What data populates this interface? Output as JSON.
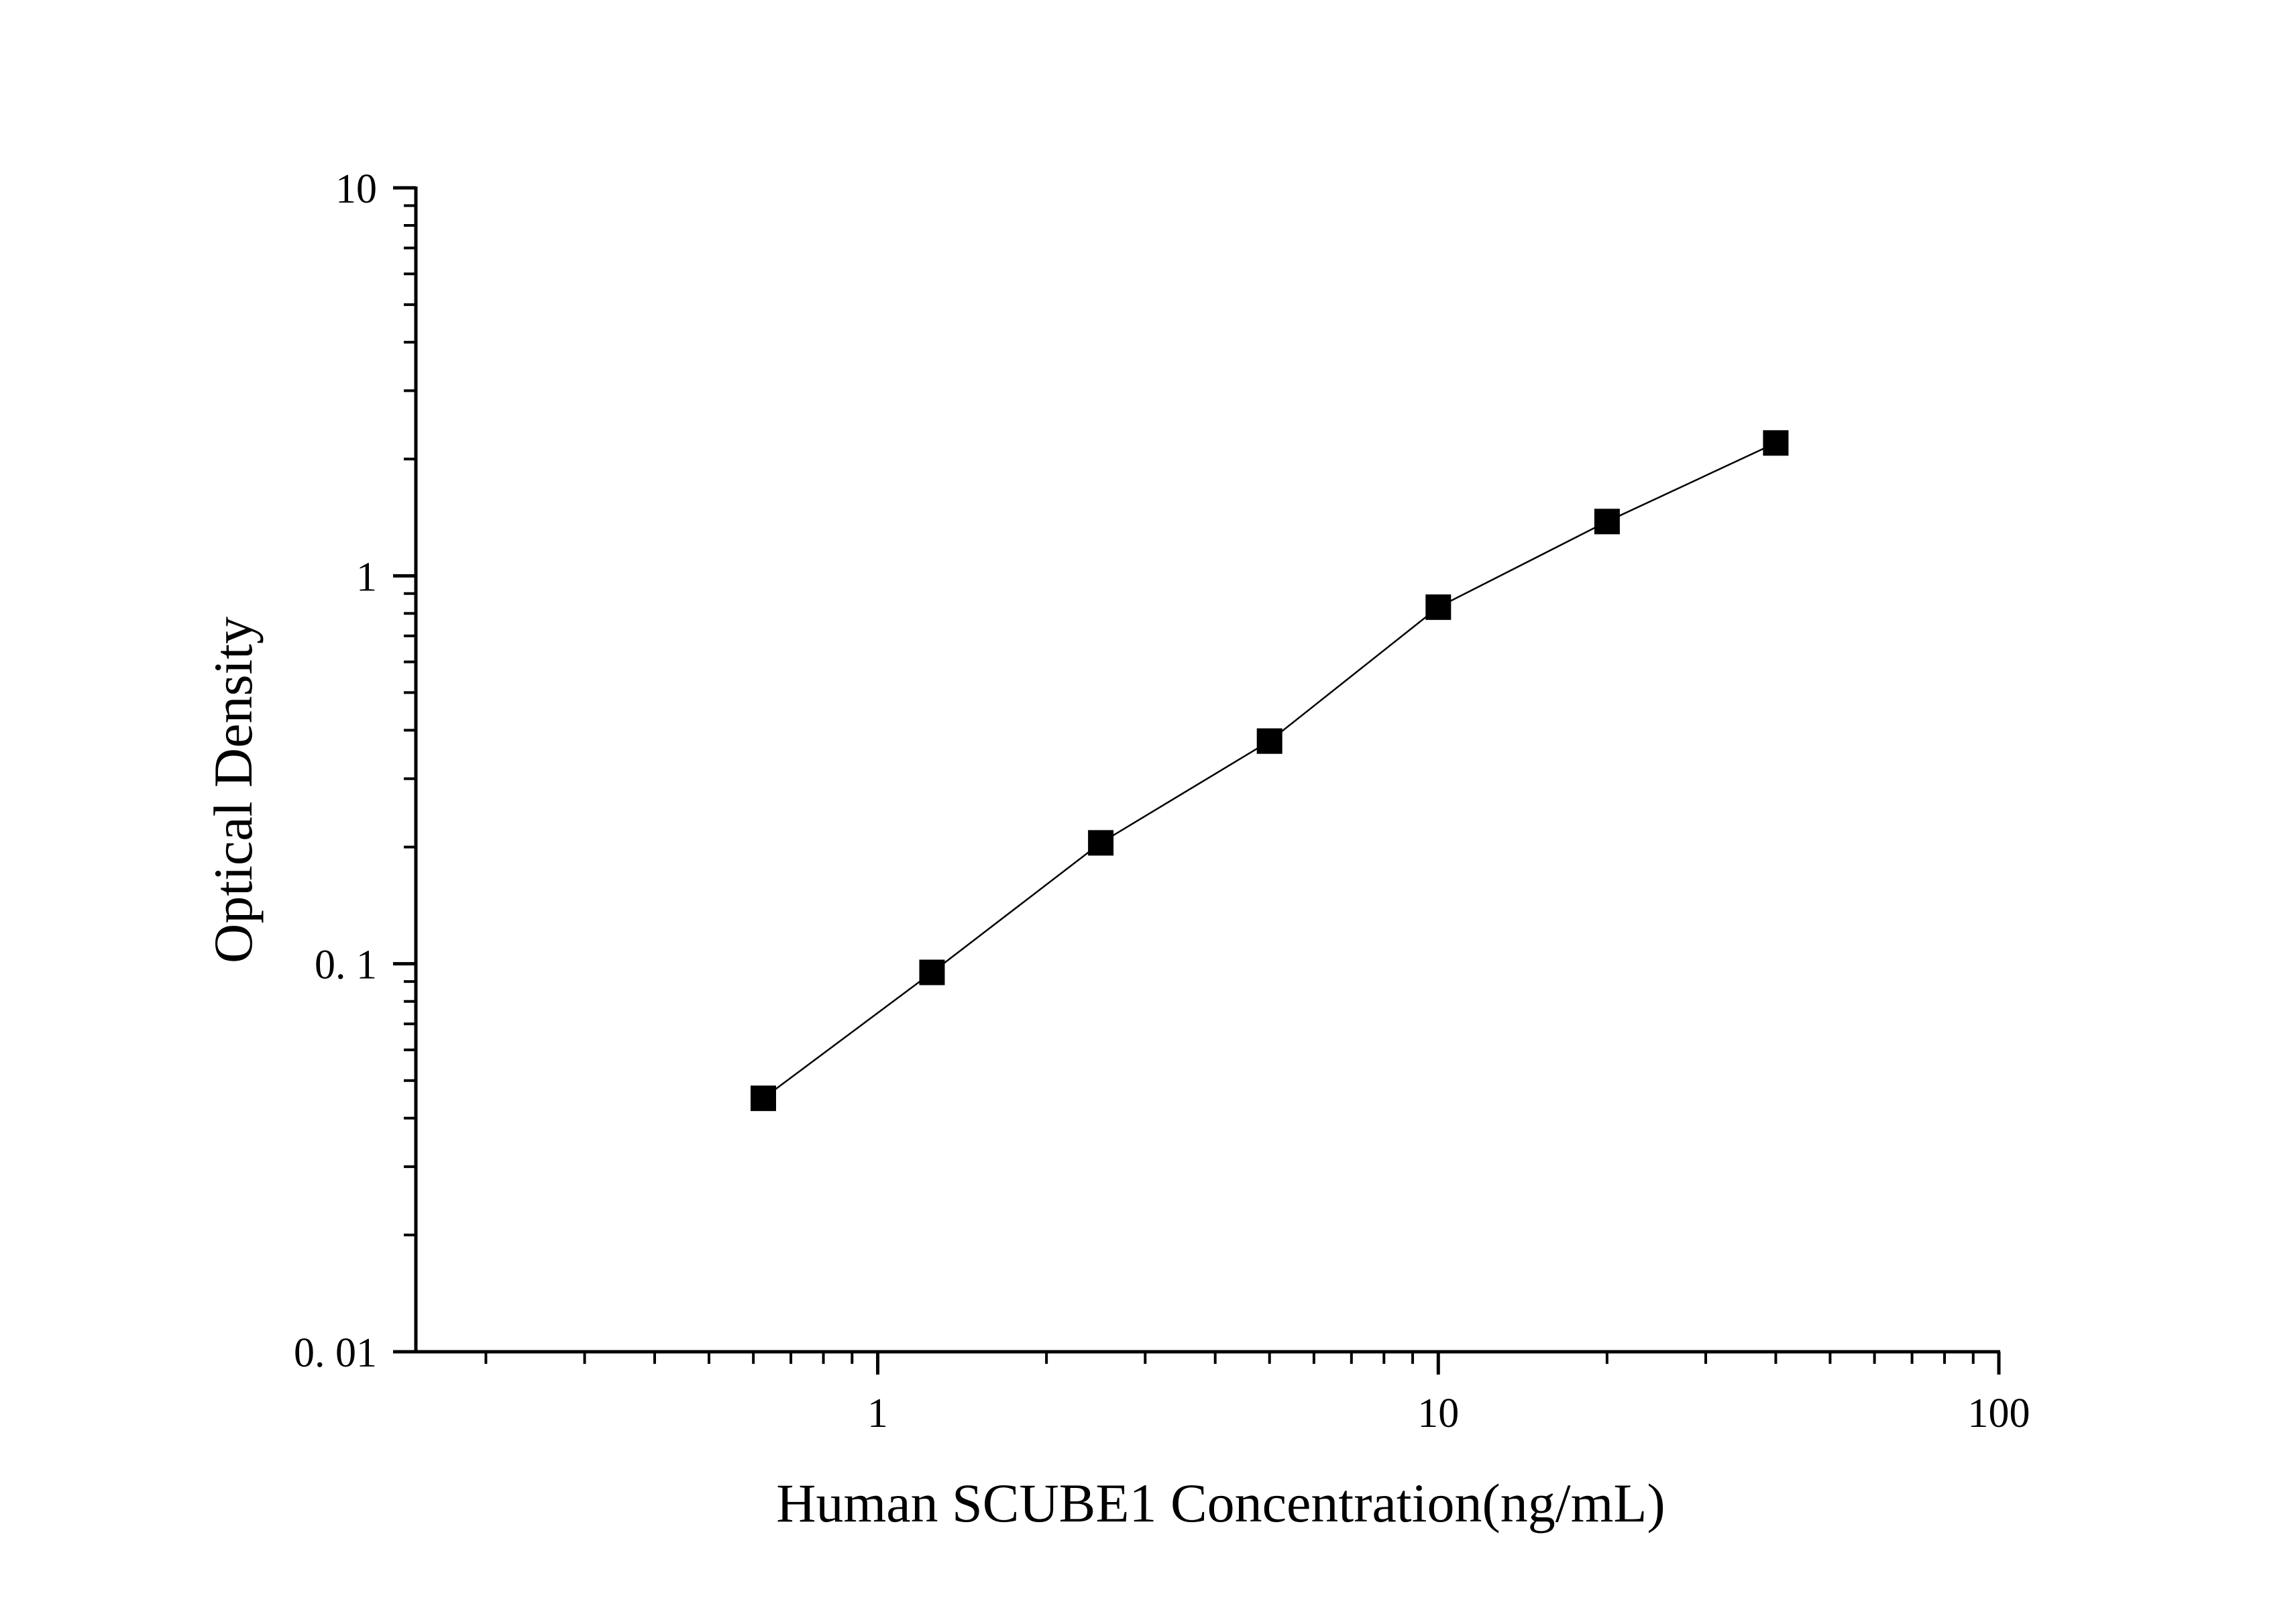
{
  "chart_data": {
    "type": "line",
    "title": "",
    "xlabel": "Human SCUBE1 Concentration(ng/mL)",
    "ylabel": "Optical Density",
    "xscale": "log",
    "yscale": "log",
    "xlim": [
      0.15,
      100
    ],
    "ylim": [
      0.01,
      10
    ],
    "xticks": [
      {
        "value": 1,
        "label": "1"
      },
      {
        "value": 10,
        "label": "10"
      },
      {
        "value": 100,
        "label": "100"
      }
    ],
    "yticks": [
      {
        "value": 0.01,
        "label": "0. 01"
      },
      {
        "value": 0.1,
        "label": "0. 1"
      },
      {
        "value": 1,
        "label": "1"
      },
      {
        "value": 10,
        "label": "10"
      }
    ],
    "grid": false,
    "legend": "none",
    "marker": "square",
    "color": "#000000",
    "series": [
      {
        "x": [
          0.625,
          1.25,
          2.5,
          5,
          10,
          20,
          40
        ],
        "values": [
          0.045,
          0.095,
          0.205,
          0.375,
          0.83,
          1.38,
          2.2
        ]
      }
    ]
  }
}
